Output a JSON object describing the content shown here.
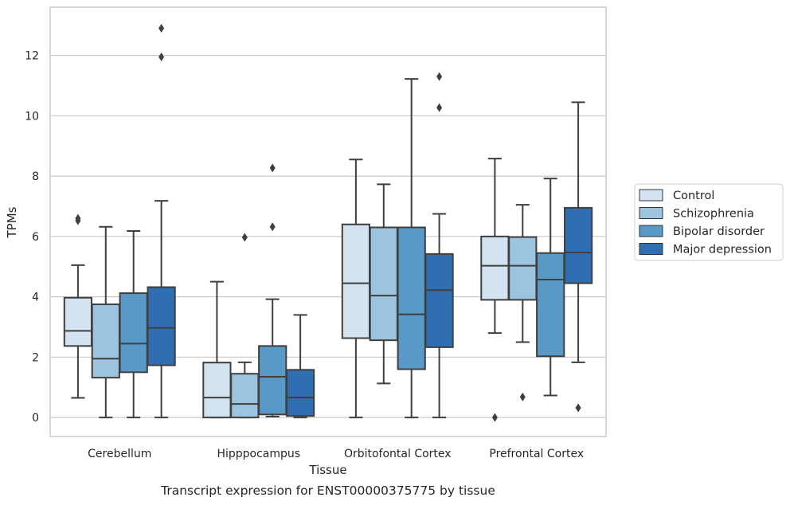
{
  "chart_data": {
    "type": "box",
    "caption": "Transcript expression for ENST00000375775 by tissue",
    "xlabel": "Tissue",
    "ylabel": "TPMs",
    "ylim": [
      -0.63,
      13.6
    ],
    "yticks": [
      0,
      2,
      4,
      6,
      8,
      10,
      12
    ],
    "grid": "horizontal",
    "legend_position": "right",
    "categories": [
      "Cerebellum",
      "Hipppocampus",
      "Orbitofontal Cortex",
      "Prefrontal Cortex"
    ],
    "series": [
      {
        "name": "Control",
        "color": "#d3e3f2",
        "boxes": [
          {
            "whislo": 0.65,
            "q1": 2.37,
            "med": 2.87,
            "q3": 3.97,
            "whishi": 5.05,
            "fliers": [
              6.52,
              6.6
            ]
          },
          {
            "whislo": 0.0,
            "q1": 0.0,
            "med": 0.66,
            "q3": 1.82,
            "whishi": 4.5,
            "fliers": []
          },
          {
            "whislo": 0.0,
            "q1": 2.63,
            "med": 4.45,
            "q3": 6.4,
            "whishi": 8.55,
            "fliers": []
          },
          {
            "whislo": 2.8,
            "q1": 3.9,
            "med": 5.03,
            "q3": 6.0,
            "whishi": 8.58,
            "fliers": [
              0.0
            ]
          }
        ]
      },
      {
        "name": "Schizophrenia",
        "color": "#9dc4df",
        "boxes": [
          {
            "whislo": 0.0,
            "q1": 1.32,
            "med": 1.95,
            "q3": 3.75,
            "whishi": 6.32,
            "fliers": []
          },
          {
            "whislo": 0.0,
            "q1": 0.0,
            "med": 0.45,
            "q3": 1.45,
            "whishi": 1.83,
            "fliers": [
              5.97
            ]
          },
          {
            "whislo": 1.13,
            "q1": 2.56,
            "med": 4.04,
            "q3": 6.3,
            "whishi": 7.73,
            "fliers": []
          },
          {
            "whislo": 2.5,
            "q1": 3.9,
            "med": 5.03,
            "q3": 5.98,
            "whishi": 7.05,
            "fliers": [
              0.68
            ]
          }
        ]
      },
      {
        "name": "Bipolar disorder",
        "color": "#5999c8",
        "boxes": [
          {
            "whislo": 0.0,
            "q1": 1.5,
            "med": 2.45,
            "q3": 4.12,
            "whishi": 6.18,
            "fliers": []
          },
          {
            "whislo": 0.03,
            "q1": 0.1,
            "med": 1.35,
            "q3": 2.37,
            "whishi": 3.92,
            "fliers": [
              6.32,
              8.27
            ]
          },
          {
            "whislo": 0.0,
            "q1": 1.6,
            "med": 3.42,
            "q3": 6.3,
            "whishi": 11.22,
            "fliers": []
          },
          {
            "whislo": 0.73,
            "q1": 2.03,
            "med": 4.57,
            "q3": 5.45,
            "whishi": 7.92,
            "fliers": []
          }
        ]
      },
      {
        "name": "Major depression",
        "color": "#2f6fb1",
        "boxes": [
          {
            "whislo": 0.0,
            "q1": 1.73,
            "med": 2.97,
            "q3": 4.32,
            "whishi": 7.18,
            "fliers": [
              11.95,
              12.9
            ]
          },
          {
            "whislo": 0.0,
            "q1": 0.05,
            "med": 0.66,
            "q3": 1.58,
            "whishi": 3.4,
            "fliers": []
          },
          {
            "whislo": 0.0,
            "q1": 2.33,
            "med": 4.22,
            "q3": 5.42,
            "whishi": 6.75,
            "fliers": [
              10.27,
              11.3
            ]
          },
          {
            "whislo": 1.83,
            "q1": 4.45,
            "med": 5.47,
            "q3": 6.95,
            "whishi": 10.45,
            "fliers": [
              0.32
            ]
          }
        ]
      }
    ]
  }
}
